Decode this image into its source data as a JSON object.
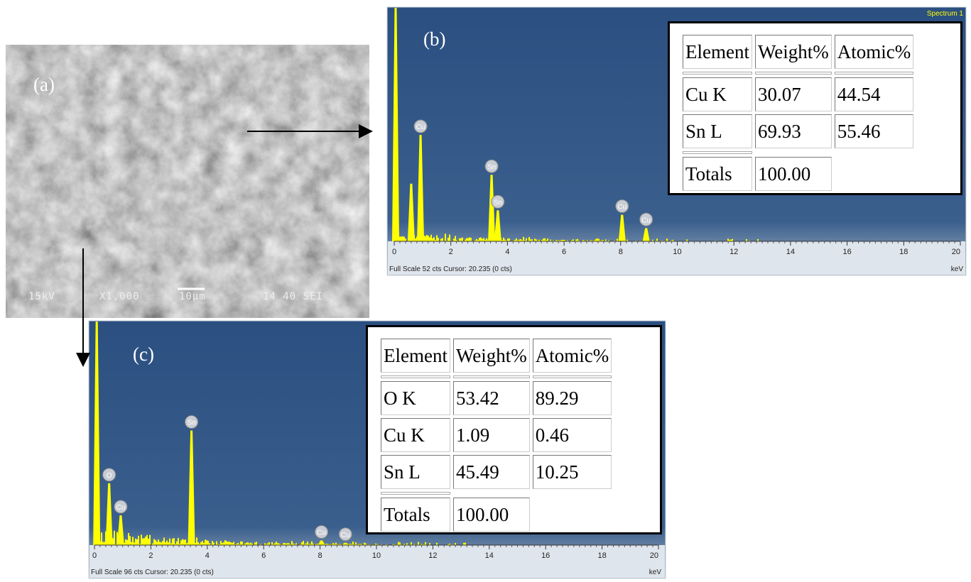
{
  "sem": {
    "label": "(a)",
    "info": [
      "15kV",
      "X1,000",
      "10µm",
      "14 40 SEI"
    ]
  },
  "spectra": [
    {
      "label": "(b)",
      "title": "Spectrum 1",
      "footer": "Full Scale 52 cts Cursor: 20.235  (0 cts)",
      "unit": "keV",
      "xlim": [
        0,
        20
      ],
      "ylim": [
        0,
        52
      ],
      "xticks": [
        0,
        2,
        4,
        6,
        8,
        10,
        12,
        14,
        16,
        18,
        20
      ],
      "peaks": [
        {
          "label": null,
          "x": 0.05,
          "y": 70
        },
        {
          "label": null,
          "x": 0.6,
          "y": 13
        },
        {
          "label": "Cu",
          "x": 0.93,
          "y": 24
        },
        {
          "label": "Sn",
          "x": 3.44,
          "y": 15
        },
        {
          "label": "Sn",
          "x": 3.66,
          "y": 7
        },
        {
          "label": "Cu",
          "x": 8.05,
          "y": 6
        },
        {
          "label": "Cu",
          "x": 8.9,
          "y": 3
        }
      ],
      "table": {
        "header": [
          "Element",
          "Weight%",
          "Atomic%"
        ],
        "rows": [
          [
            "Cu K",
            "30.07",
            "44.54"
          ],
          [
            "Sn L",
            "69.93",
            "55.46"
          ]
        ],
        "totals": [
          "Totals",
          "100.00"
        ]
      }
    },
    {
      "label": "(c)",
      "title": null,
      "footer": "Full Scale 96 cts Cursor: 20.235  (0 cts)",
      "unit": "keV",
      "xlim": [
        0,
        20
      ],
      "ylim": [
        0,
        96
      ],
      "xticks": [
        0,
        2,
        4,
        6,
        8,
        10,
        12,
        14,
        16,
        18,
        20
      ],
      "peaks": [
        {
          "label": null,
          "x": 0.08,
          "y": 120
        },
        {
          "label": "O",
          "x": 0.52,
          "y": 27
        },
        {
          "label": "Cu",
          "x": 0.93,
          "y": 13
        },
        {
          "label": "Sn",
          "x": 3.44,
          "y": 50
        },
        {
          "label": "Cu",
          "x": 8.05,
          "y": 2
        },
        {
          "label": "Cu",
          "x": 8.9,
          "y": 1
        }
      ],
      "table": {
        "header": [
          "Element",
          "Weight%",
          "Atomic%"
        ],
        "rows": [
          [
            "O K",
            "53.42",
            "89.29"
          ],
          [
            "Cu K",
            "1.09",
            "0.46"
          ],
          [
            "Sn L",
            "45.49",
            "10.25"
          ]
        ],
        "totals": [
          "Totals",
          "100.00"
        ]
      }
    }
  ]
}
